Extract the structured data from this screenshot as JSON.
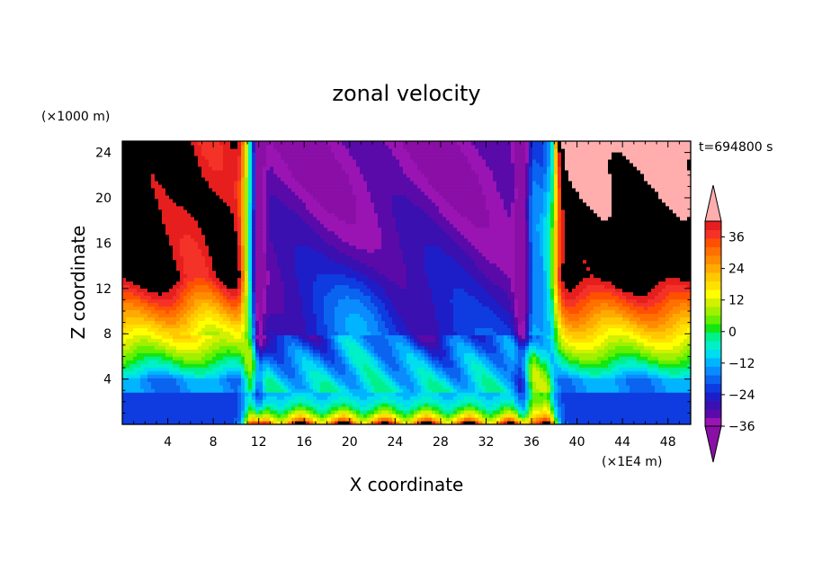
{
  "chart_data": {
    "type": "heatmap",
    "subtype": "filled-contour",
    "title": "zonal velocity",
    "xlabel": "X coordinate",
    "ylabel": "Z coordinate",
    "x_unit_label": "(×1E4 m)",
    "y_unit_label": "(×1000 m)",
    "time_label": "t=694800 s",
    "xlim": [
      0,
      50
    ],
    "ylim": [
      0,
      25
    ],
    "x_ticks": [
      4,
      8,
      12,
      16,
      20,
      24,
      28,
      32,
      36,
      40,
      44,
      48
    ],
    "y_ticks": [
      4,
      8,
      12,
      16,
      20,
      24
    ],
    "colorbar": {
      "levels": [
        -42,
        -39,
        -36,
        -33,
        -30,
        -27,
        -24,
        -21,
        -18,
        -15,
        -12,
        -9,
        -6,
        -3,
        0,
        3,
        6,
        9,
        12,
        15,
        18,
        21,
        24,
        27,
        30,
        33,
        36,
        39,
        42
      ],
      "tick_values": [
        -36,
        -24,
        -12,
        0,
        12,
        24,
        36
      ],
      "tick_labels": [
        "−36",
        "−24",
        "−12",
        "0",
        "12",
        "24",
        "36"
      ],
      "under_color": "#8a0fa6",
      "over_color": "#ffadad",
      "colors": [
        "#9a14b4",
        "#5a0aa8",
        "#3a10b0",
        "#1e1ec8",
        "#0f3ce0",
        "#0a64f0",
        "#0a8cff",
        "#00b4ff",
        "#00dcf0",
        "#00f0c8",
        "#00f08c",
        "#14e614",
        "#64f000",
        "#a0f000",
        "#d2f000",
        "#ffff00",
        "#ffe100",
        "#ffc800",
        "#ffaa00",
        "#ff8c00",
        "#ff7000",
        "#ff5000",
        "#f53228",
        "#e61e1e"
      ]
    },
    "field_description": "Westerlies (positive) at x<11 and x>38, easterlies (negative) aloft between x≈12–34; narrow jets near x≈11 and x≈35–37; strong positive shear layer below z≈3 across the domain"
  }
}
